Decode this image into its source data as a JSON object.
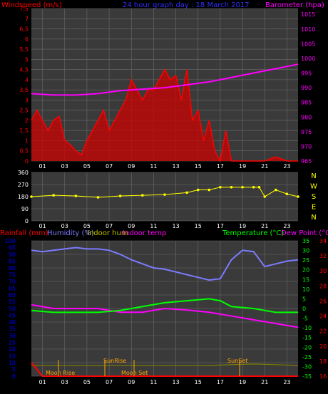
{
  "header": {
    "windspeed_label": "Windspeed (m/s)",
    "title": "24 hour graph day : 18 March 2017",
    "barometer_label": "Barometer (hpa)"
  },
  "bottom_header": {
    "rainfall_label": "Rainfall (mm)",
    "humidity_label": "Humidity (%)",
    "indoor_hum_label": "Indoor hum",
    "indoor_temp_label": "Indoor temp",
    "temperature_label": "Temperature (°C)",
    "dewpoint_label": "Dew Point (°C)"
  },
  "colors": {
    "windspeed": "#ff0000",
    "barometer": "#ff00ff",
    "title": "#3030ff",
    "wind_direction": "#ffff00",
    "humidity": "#7b7bff",
    "temperature": "#00ff00",
    "dewpoint": "#ff00ff",
    "indoor_hum": "#808000",
    "indoor_temp": "#ff00ff",
    "rainfall": "#ff0000",
    "axis_rainfall": "#0000ff",
    "axis_temperature": "#00ff00",
    "axis_dewpoint": "#ff0000"
  },
  "x_ticks": [
    "01",
    "03",
    "05",
    "07",
    "09",
    "11",
    "13",
    "15",
    "17",
    "19",
    "21",
    "23"
  ],
  "wind_panel": {
    "left_ticks": [
      "0",
      "0,5",
      "1",
      "1,5",
      "2",
      "2,5",
      "3",
      "3,5",
      "4",
      "4,5",
      "5",
      "5,5",
      "6",
      "6,5",
      "7",
      "7,5"
    ],
    "right_ticks": [
      "965",
      "970",
      "975",
      "980",
      "985",
      "990",
      "995",
      "1000",
      "1005",
      "1010",
      "1015"
    ]
  },
  "direction_panel": {
    "left_ticks": [
      "360",
      "270",
      "180",
      "90",
      "0"
    ],
    "compass": [
      "N",
      "W",
      "S",
      "E",
      "N"
    ]
  },
  "bottom_panel": {
    "left_ticks": [
      "100",
      "95",
      "90",
      "85",
      "80",
      "75",
      "70",
      "65",
      "60",
      "55",
      "50",
      "45",
      "40",
      "35",
      "30",
      "25",
      "20",
      "15",
      "10",
      "5",
      "0"
    ],
    "temp_ticks": [
      "35",
      "30",
      "25",
      "20",
      "15",
      "10",
      "5",
      "0",
      "-5",
      "-10",
      "-15",
      "-20",
      "-25",
      "-30",
      "-35"
    ],
    "dew_ticks": [
      "34",
      "32",
      "30",
      "28",
      "26",
      "24",
      "22",
      "20",
      "18",
      "16"
    ]
  },
  "annotations": {
    "moon_rise": "Moon Rise",
    "sunrise": "SunRise",
    "moon_set": "Moon Set",
    "sunset": "SunSet"
  },
  "chart_data": [
    {
      "type": "line",
      "title": "24 hour graph day : 18 March 2017",
      "x_hours_range": [
        0,
        24
      ],
      "grid": true,
      "series": [
        {
          "name": "Windspeed (m/s)",
          "axis": "left",
          "ylim": [
            0,
            7.5
          ],
          "x": [
            0,
            0.5,
            1,
            1.5,
            2,
            2.5,
            3,
            3.5,
            4,
            4.5,
            5,
            5.5,
            6,
            6.5,
            7,
            7.5,
            8,
            8.5,
            9,
            9.5,
            10,
            10.5,
            11,
            11.5,
            12,
            12.5,
            13,
            13.5,
            14,
            14.5,
            15,
            15.5,
            16,
            16.5,
            17,
            17.5,
            18,
            19,
            20,
            21,
            22,
            23,
            24
          ],
          "y": [
            2,
            2.5,
            2,
            1.5,
            2,
            2.2,
            1,
            0.8,
            0.5,
            0.3,
            1,
            1.5,
            2,
            2.5,
            1.5,
            2,
            2.5,
            3,
            4,
            3.5,
            3,
            3.5,
            3.5,
            4,
            4.5,
            4,
            4.2,
            3,
            4.5,
            2,
            2.5,
            1,
            2,
            0.5,
            0,
            1.5,
            0,
            0,
            0,
            0,
            0.2,
            0,
            0
          ]
        },
        {
          "name": "Barometer (hpa)",
          "axis": "right",
          "ylim": [
            965,
            1017
          ],
          "x": [
            0,
            2,
            4,
            6,
            8,
            10,
            12,
            14,
            16,
            18,
            20,
            22,
            24
          ],
          "y": [
            988,
            987.5,
            987.5,
            988,
            989,
            989.5,
            990,
            991,
            992,
            993.5,
            995,
            996.5,
            998
          ]
        }
      ]
    },
    {
      "type": "scatter",
      "name": "Wind direction",
      "ylim": [
        0,
        360
      ],
      "x": [
        0,
        2,
        4,
        6,
        8,
        10,
        12,
        14,
        15,
        16,
        17,
        18,
        19,
        20,
        20.5,
        21,
        22,
        23,
        24
      ],
      "y": [
        180,
        190,
        185,
        175,
        185,
        190,
        195,
        210,
        230,
        230,
        250,
        250,
        250,
        250,
        250,
        180,
        230,
        200,
        180
      ]
    },
    {
      "type": "line",
      "x_hours_range": [
        0,
        24
      ],
      "series": [
        {
          "name": "Humidity (%)",
          "ylim": [
            0,
            100
          ],
          "x": [
            0,
            1,
            2,
            3,
            4,
            5,
            6,
            7,
            8,
            9,
            10,
            11,
            12,
            13,
            14,
            15,
            16,
            17,
            18,
            19,
            20,
            21,
            22,
            23,
            24
          ],
          "y": [
            93,
            92,
            93,
            94,
            95,
            94,
            94,
            93,
            90,
            86,
            83,
            80,
            79,
            77,
            75,
            73,
            71,
            72,
            86,
            93,
            92,
            81,
            83,
            85,
            86
          ]
        },
        {
          "name": "Temperature (°C)",
          "ylim": [
            -35,
            35
          ],
          "x": [
            0,
            2,
            4,
            6,
            8,
            9,
            10,
            12,
            14,
            16,
            17,
            18,
            20,
            22,
            24
          ],
          "y": [
            -1,
            -2,
            -2,
            -2,
            -1,
            0,
            1,
            3,
            4,
            5,
            4,
            1,
            0,
            -2,
            -2
          ]
        },
        {
          "name": "Dew Point (°C)",
          "ylim": [
            16,
            34
          ],
          "x": [
            0,
            2,
            4,
            6,
            8,
            10,
            12,
            14,
            16,
            18,
            20,
            22,
            24
          ],
          "y": [
            25.5,
            25,
            25,
            25,
            24.5,
            24.5,
            25,
            24.8,
            24.5,
            24,
            23.5,
            23,
            22.5
          ]
        },
        {
          "name": "Indoor hum",
          "ylim": [
            0,
            100
          ],
          "x": [
            0,
            4,
            8,
            12,
            16,
            20,
            24
          ],
          "y": [
            8,
            8,
            8,
            8,
            8,
            9,
            8
          ]
        },
        {
          "name": "Rainfall (mm)",
          "ylim": [
            0,
            100
          ],
          "x": [
            0,
            1,
            24
          ],
          "y": [
            10,
            0,
            0
          ]
        }
      ]
    }
  ]
}
